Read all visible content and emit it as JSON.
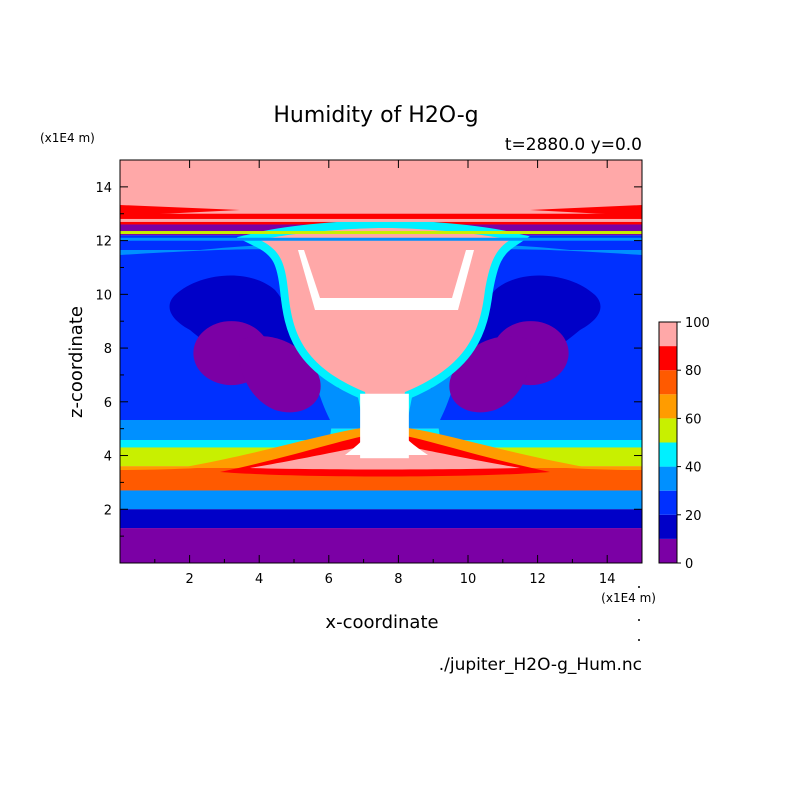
{
  "chart_data": {
    "type": "heatmap",
    "title": "Humidity of H2O-g",
    "subtitle": "t=2880.0 y=0.0",
    "xlabel": "x-coordinate",
    "ylabel": "z-coordinate",
    "x_unit_label": "(x1E4 m)",
    "y_unit_label": "(x1E4 m)",
    "xlim": [
      0,
      15
    ],
    "ylim": [
      0,
      15
    ],
    "x_ticks": [
      2,
      4,
      6,
      8,
      10,
      12,
      14
    ],
    "y_ticks": [
      2,
      4,
      6,
      8,
      10,
      12,
      14
    ],
    "colorbar": {
      "range": [
        0,
        100
      ],
      "tick_labels": [
        0,
        20,
        40,
        60,
        80,
        100
      ],
      "levels": [
        {
          "from": 0,
          "to": 10,
          "color": "#7b00a5"
        },
        {
          "from": 10,
          "to": 20,
          "color": "#0000c8"
        },
        {
          "from": 20,
          "to": 30,
          "color": "#0030ff"
        },
        {
          "from": 30,
          "to": 40,
          "color": "#0090ff"
        },
        {
          "from": 40,
          "to": 50,
          "color": "#00f0ff"
        },
        {
          "from": 50,
          "to": 60,
          "color": "#c8f000"
        },
        {
          "from": 60,
          "to": 70,
          "color": "#ff9c00"
        },
        {
          "from": 70,
          "to": 80,
          "color": "#ff5a00"
        },
        {
          "from": 80,
          "to": 90,
          "color": "#ff0000"
        },
        {
          "from": 90,
          "to": 100,
          "color": "#ffa8a8"
        }
      ],
      "over_color": "#ffffff"
    },
    "layers": [
      {
        "z": [
          14.7,
          13.0
        ],
        "value": 95
      },
      {
        "z": [
          13.0,
          12.6
        ],
        "value": 85
      },
      {
        "z": [
          12.6,
          12.2
        ],
        "value": 5
      },
      {
        "z": [
          12.2,
          6.5
        ],
        "value": 25
      },
      {
        "z": [
          6.5,
          5.0
        ],
        "value": 35
      },
      {
        "z": [
          5.0,
          4.3
        ],
        "value": 45
      },
      {
        "z": [
          4.3,
          3.6
        ],
        "value": 55
      },
      {
        "z": [
          3.6,
          3.3
        ],
        "value": 65
      },
      {
        "z": [
          3.3,
          2.7
        ],
        "value": 75
      },
      {
        "z": [
          2.7,
          2.0
        ],
        "value": 35
      },
      {
        "z": [
          2.0,
          1.3
        ],
        "value": 15
      },
      {
        "z": [
          1.3,
          0.0
        ],
        "value": 5
      }
    ],
    "features": [
      {
        "name": "cloud-anvil",
        "x": [
          5.0,
          10.0
        ],
        "z": [
          6.5,
          12.4
        ],
        "value": 95
      },
      {
        "name": "supersaturated-core",
        "x": [
          6.9,
          8.3
        ],
        "z": [
          3.9,
          6.3
        ],
        "value": 100
      },
      {
        "name": "dry-lobe-left",
        "x_center": 3.2,
        "z_center": 8.0,
        "value": 5
      },
      {
        "name": "dry-lobe-right",
        "x_center": 11.8,
        "z_center": 8.0,
        "value": 5
      }
    ]
  },
  "footer": {
    "filename": "./jupiter_H2O-g_Hum.nc"
  }
}
